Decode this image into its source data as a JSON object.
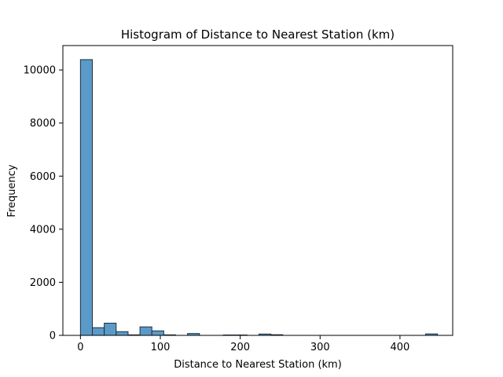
{
  "chart_data": {
    "type": "bar",
    "title": "Histogram of Distance to Nearest Station (km)",
    "xlabel": "Distance to Nearest Station (km)",
    "ylabel": "Frequency",
    "xlim": [
      -22,
      466
    ],
    "ylim": [
      0,
      10920
    ],
    "xticks": [
      0,
      100,
      200,
      300,
      400
    ],
    "yticks": [
      0,
      2000,
      4000,
      6000,
      8000,
      10000
    ],
    "bin_width": 14.9,
    "bins": [
      {
        "x0": 0.0,
        "value": 10390
      },
      {
        "x0": 14.9,
        "value": 290
      },
      {
        "x0": 29.8,
        "value": 460
      },
      {
        "x0": 44.7,
        "value": 140
      },
      {
        "x0": 59.6,
        "value": 20
      },
      {
        "x0": 74.5,
        "value": 320
      },
      {
        "x0": 89.4,
        "value": 170
      },
      {
        "x0": 104.3,
        "value": 20
      },
      {
        "x0": 119.2,
        "value": 0
      },
      {
        "x0": 134.1,
        "value": 70
      },
      {
        "x0": 149.0,
        "value": 0
      },
      {
        "x0": 163.9,
        "value": 0
      },
      {
        "x0": 178.8,
        "value": 15
      },
      {
        "x0": 193.7,
        "value": 15
      },
      {
        "x0": 208.6,
        "value": 0
      },
      {
        "x0": 223.5,
        "value": 50
      },
      {
        "x0": 238.4,
        "value": 25
      },
      {
        "x0": 253.3,
        "value": 0
      },
      {
        "x0": 268.2,
        "value": 0
      },
      {
        "x0": 283.1,
        "value": 0
      },
      {
        "x0": 298.0,
        "value": 0
      },
      {
        "x0": 312.9,
        "value": 0
      },
      {
        "x0": 327.8,
        "value": 0
      },
      {
        "x0": 342.7,
        "value": 0
      },
      {
        "x0": 357.6,
        "value": 0
      },
      {
        "x0": 372.5,
        "value": 0
      },
      {
        "x0": 387.4,
        "value": 0
      },
      {
        "x0": 402.3,
        "value": 0
      },
      {
        "x0": 417.2,
        "value": 0
      },
      {
        "x0": 432.1,
        "value": 55
      }
    ],
    "grid": false,
    "bar_color": "#5b9ac8",
    "edge_color": "#1f2f3f"
  }
}
